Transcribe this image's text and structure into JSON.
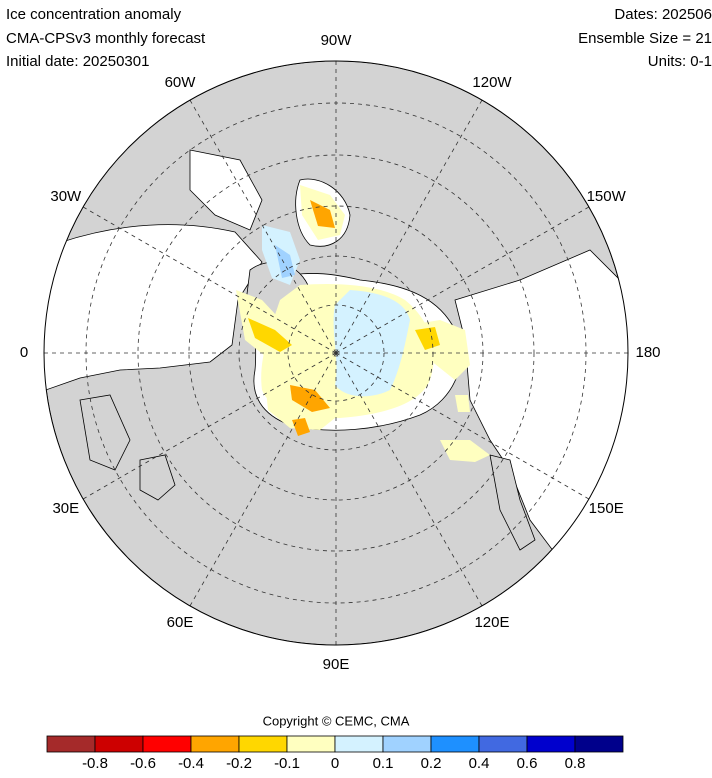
{
  "header": {
    "left": [
      "Ice concentration anomaly",
      "CMA-CPSv3 monthly forecast",
      "Initial date: 20250301"
    ],
    "right": [
      "Dates: 202506",
      "Ensemble Size = 21",
      "Units: 0-1"
    ]
  },
  "map": {
    "longitude_labels": [
      "90W",
      "120W",
      "150W",
      "180",
      "150E",
      "120E",
      "90E",
      "60E",
      "30E",
      "0",
      "30W",
      "60W"
    ]
  },
  "copyright": "Copyright © CEMC, CMA",
  "colorbar": {
    "levels": [
      -0.8,
      -0.6,
      -0.4,
      -0.2,
      -0.1,
      0,
      0.1,
      0.2,
      0.4,
      0.6,
      0.8
    ],
    "colors": [
      "#a52a2a",
      "#cd0000",
      "#ff0000",
      "#ffa500",
      "#ffd700",
      "#ffffc0",
      "#d4f2ff",
      "#a0d2ff",
      "#1e90ff",
      "#4169e1",
      "#0000cd",
      "#00008b"
    ]
  }
}
